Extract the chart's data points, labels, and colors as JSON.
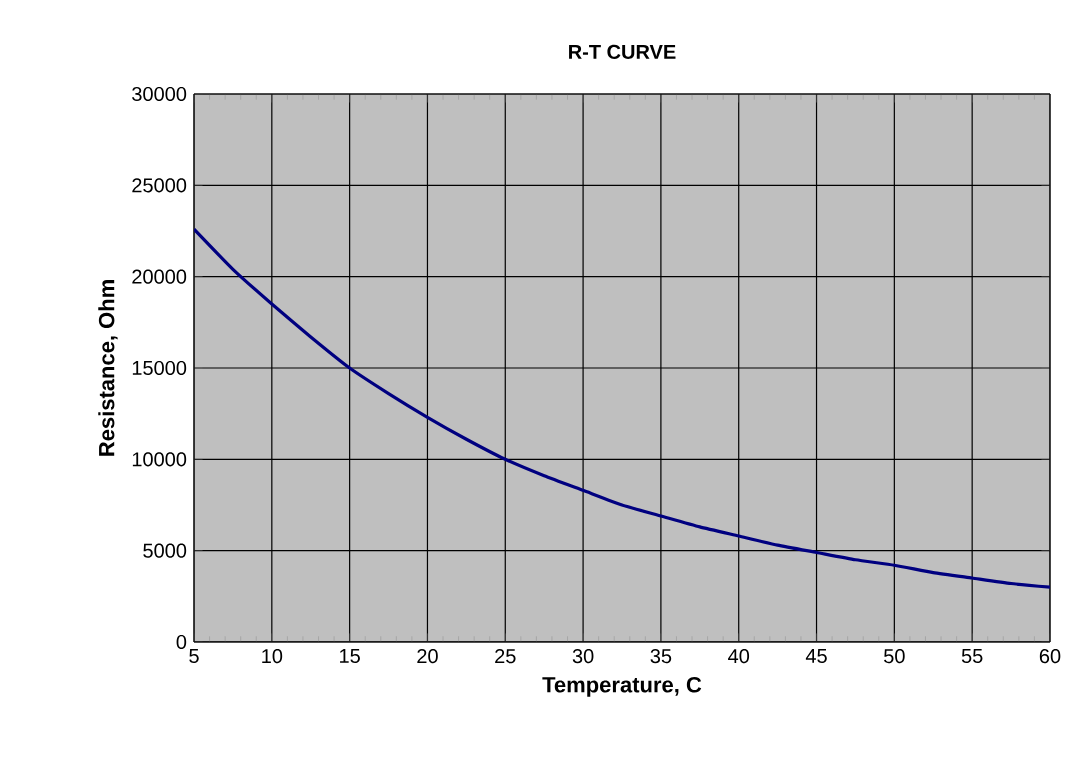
{
  "chart_data": {
    "type": "line",
    "title": "R-T CURVE",
    "xlabel": "Temperature, C",
    "ylabel": "Resistance, Ohm",
    "x": [
      5,
      7.5,
      10,
      12.5,
      15,
      17.5,
      20,
      22.5,
      25,
      27.5,
      30,
      32.5,
      35,
      37.5,
      40,
      42.5,
      45,
      47.5,
      50,
      52.5,
      55,
      57.5,
      60
    ],
    "series": [
      {
        "color": "#000080",
        "values": [
          22600,
          20400,
          18500,
          16700,
          15000,
          13600,
          12300,
          11100,
          10000,
          9100,
          8300,
          7500,
          6900,
          6300,
          5800,
          5300,
          4900,
          4500,
          4200,
          3800,
          3500,
          3200,
          3000
        ]
      }
    ],
    "xlim": [
      5,
      60
    ],
    "xticks": [
      5,
      10,
      15,
      20,
      25,
      30,
      35,
      40,
      45,
      50,
      55,
      60
    ],
    "ylim": [
      0,
      30000
    ],
    "yticks": [
      0,
      5000,
      10000,
      15000,
      20000,
      25000,
      30000
    ],
    "grid": true,
    "marker": "none",
    "line_style": "solid"
  }
}
